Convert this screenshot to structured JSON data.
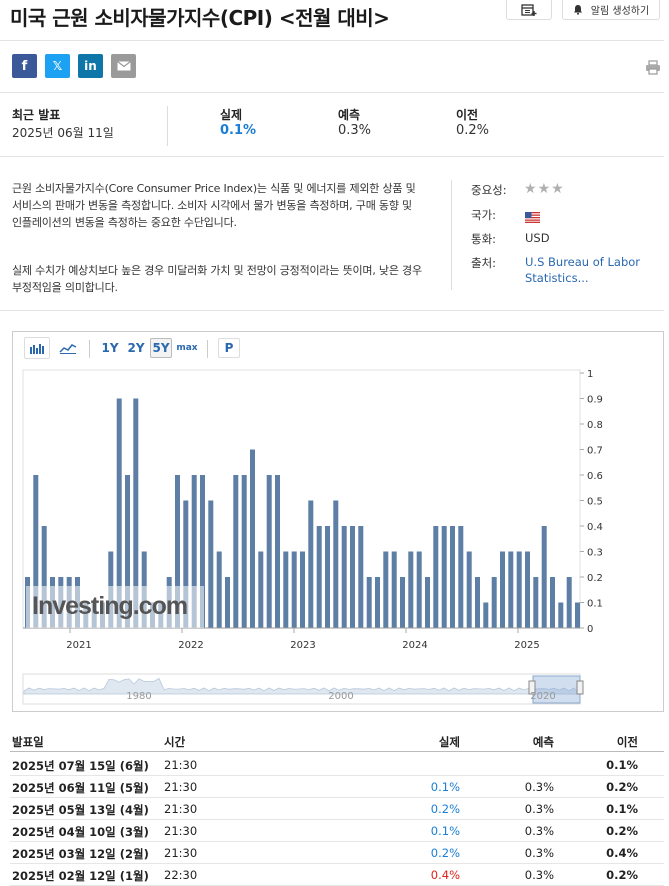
{
  "header": {
    "title": "미국 근원 소비자물가지수(CPI) <전월 대비>",
    "alert_label": "알림 생성하기"
  },
  "social": {
    "facebook": "f",
    "x": "𝕏",
    "linkedin": "in"
  },
  "summary": {
    "latest_label": "최근 발표",
    "latest_date": "2025년 06월 11일",
    "actual_label": "실제",
    "actual_value": "0.1%",
    "forecast_label": "예측",
    "forecast_value": "0.3%",
    "previous_label": "이전",
    "previous_value": "0.2%"
  },
  "description": {
    "p1": "근원 소비자물가지수(Core Consumer Price Index)는 식품 및 에너지를 제외한 상품 및 서비스의 판매가 변동을 측정합니다. 소비자 시각에서 물가 변동을 측정하며, 구매 동향 및 인플레이션의 변동을 측정하는 중요한 수단입니다.",
    "p2": "실제 수치가 예상치보다 높은 경우 미달러화 가치 및 전망이 긍정적이라는 뜻이며, 낮은 경우 부정적임을 의미합니다."
  },
  "meta": {
    "importance_label": "중요성:",
    "country_label": "국가:",
    "currency_label": "통화:",
    "currency_value": "USD",
    "source_label": "출처:",
    "source_value_1": "U.S Bureau of Labor",
    "source_value_2": "Statistics...",
    "stars": 3
  },
  "chart_controls": {
    "range_1y": "1Y",
    "range_2y": "2Y",
    "range_5y": "5Y",
    "range_max": "max",
    "print": "P"
  },
  "chart_data": {
    "type": "bar",
    "title": "",
    "xlabel": "",
    "ylabel": "",
    "ylim": [
      0,
      1
    ],
    "yticks": [
      "0",
      "0.1",
      "0.2",
      "0.3",
      "0.4",
      "0.5",
      "0.6",
      "0.7",
      "0.8",
      "0.9",
      "1"
    ],
    "x_ticks": [
      "2021",
      "2022",
      "2023",
      "2024",
      "2025"
    ],
    "navigator_ticks": [
      "1980",
      "2000",
      "2020"
    ],
    "watermark": "Investing.com",
    "color": "#5d7ea5",
    "series": [
      {
        "values": [
          0.2,
          0.6,
          0.4,
          0.2,
          0.2,
          0.2,
          0.2,
          0.1,
          0.1,
          0.1,
          0.3,
          0.9,
          0.6,
          0.9,
          0.3,
          0.1,
          0.1,
          0.2,
          0.6,
          0.5,
          0.6,
          0.6,
          0.5,
          0.3,
          0.2,
          0.6,
          0.6,
          0.7,
          0.3,
          0.6,
          0.6,
          0.3,
          0.3,
          0.3,
          0.5,
          0.4,
          0.4,
          0.5,
          0.4,
          0.4,
          0.4,
          0.2,
          0.2,
          0.3,
          0.3,
          0.2,
          0.3,
          0.3,
          0.2,
          0.4,
          0.4,
          0.4,
          0.4,
          0.3,
          0.2,
          0.1,
          0.2,
          0.3,
          0.3,
          0.3,
          0.3,
          0.2,
          0.4,
          0.2,
          0.1,
          0.2,
          0.1
        ]
      }
    ]
  },
  "table": {
    "headers": {
      "date": "발표일",
      "time": "시간",
      "actual": "실제",
      "forecast": "예측",
      "previous": "이전"
    },
    "rows": [
      {
        "date": "2025년 07월 15일 (6월)",
        "time": "21:30",
        "actual": "",
        "actual_color": "",
        "forecast": "",
        "previous": "0.1%"
      },
      {
        "date": "2025년 06월 11일 (5월)",
        "time": "21:30",
        "actual": "0.1%",
        "actual_color": "#1a7fd4",
        "forecast": "0.3%",
        "previous": "0.2%"
      },
      {
        "date": "2025년 05월 13일 (4월)",
        "time": "21:30",
        "actual": "0.2%",
        "actual_color": "#1a7fd4",
        "forecast": "0.3%",
        "previous": "0.1%"
      },
      {
        "date": "2025년 04월 10일 (3월)",
        "time": "21:30",
        "actual": "0.1%",
        "actual_color": "#1a7fd4",
        "forecast": "0.3%",
        "previous": "0.2%"
      },
      {
        "date": "2025년 03월 12일 (2월)",
        "time": "21:30",
        "actual": "0.2%",
        "actual_color": "#1a7fd4",
        "forecast": "0.3%",
        "previous": "0.4%"
      },
      {
        "date": "2025년 02월 12일 (1월)",
        "time": "22:30",
        "actual": "0.4%",
        "actual_color": "#e0221b",
        "forecast": "0.3%",
        "previous": "0.2%"
      }
    ]
  }
}
